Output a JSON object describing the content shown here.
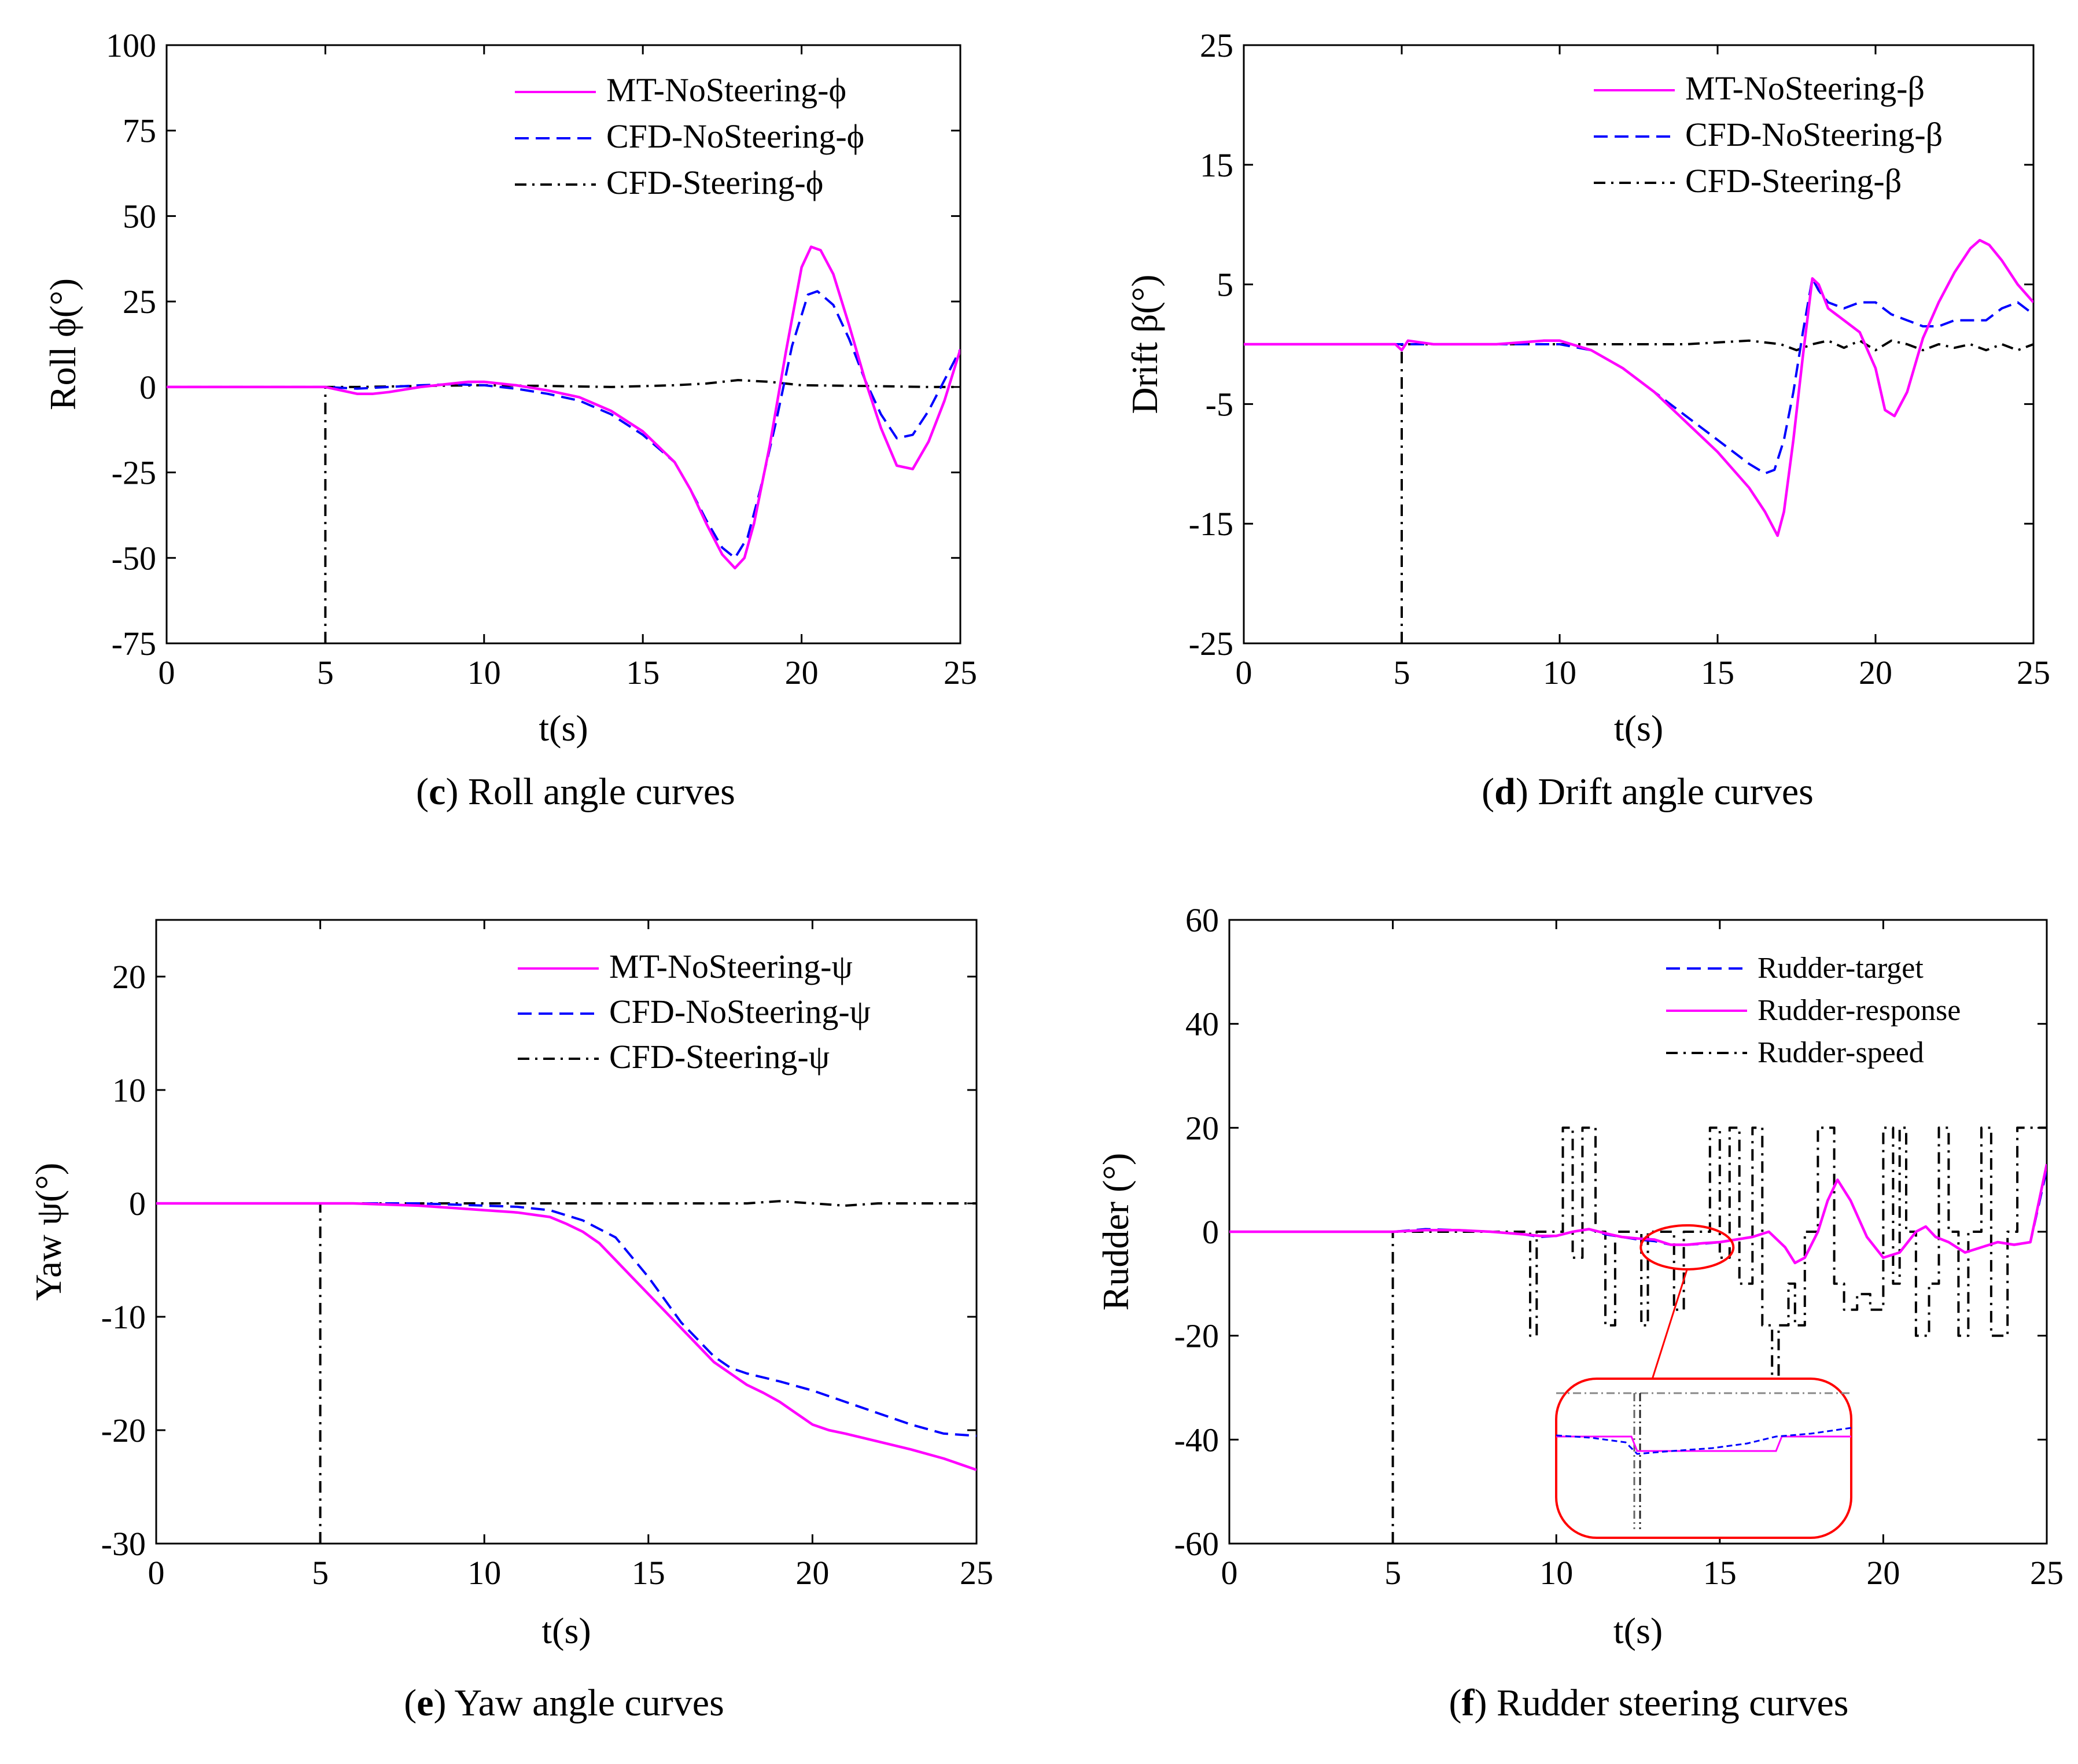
{
  "colors": {
    "mt": "#ff00ff",
    "cfd": "#0000ff",
    "steer": "#000000",
    "zoom": "#ff0000"
  },
  "chart_data": [
    {
      "id": "roll",
      "type": "line",
      "caption_letter": "c",
      "caption_text": "Roll angle curves",
      "xlabel": "t(s)",
      "ylabel": "Roll ϕ(°)",
      "xlim": [
        0,
        25
      ],
      "ylim": [
        -75,
        100
      ],
      "xticks": [
        0,
        5,
        10,
        15,
        20,
        25
      ],
      "yticks": [
        -75,
        -50,
        -25,
        0,
        25,
        50,
        75,
        100
      ],
      "legend_position": "top-right",
      "series": [
        {
          "name": "MT-NoSteering-ϕ",
          "style": "solid",
          "color": "#ff00ff",
          "x": [
            0,
            5,
            5.5,
            6,
            6.5,
            7,
            8,
            9,
            9.5,
            10,
            11,
            12,
            13,
            14,
            15,
            16,
            16.5,
            17,
            17.5,
            17.9,
            18.2,
            18.5,
            19,
            19.5,
            20,
            20.3,
            20.6,
            21,
            21.5,
            22,
            22.5,
            23,
            23.5,
            24,
            24.5,
            25
          ],
          "y": [
            0,
            0,
            -1,
            -2,
            -2,
            -1.5,
            0,
            1,
            1.5,
            1.5,
            0.5,
            -1,
            -3,
            -7,
            -13,
            -22,
            -30,
            -40,
            -49,
            -53,
            -50,
            -40,
            -17,
            10,
            35,
            41,
            40,
            33,
            18,
            2,
            -12,
            -23,
            -24,
            -16,
            -4,
            11
          ]
        },
        {
          "name": "CFD-NoSteering-ϕ",
          "style": "dash",
          "color": "#0000ff",
          "x": [
            0,
            5,
            6,
            7,
            8,
            9,
            10,
            11,
            12,
            13,
            14,
            15,
            16,
            16.5,
            17,
            17.5,
            17.9,
            18.3,
            18.7,
            19.2,
            19.7,
            20.2,
            20.5,
            21,
            21.5,
            22,
            22.5,
            23,
            23.5,
            24,
            24.5,
            25
          ],
          "y": [
            0,
            0,
            -0.5,
            0,
            0.5,
            0.8,
            0.5,
            -0.5,
            -2,
            -4,
            -8,
            -14,
            -22,
            -30,
            -39,
            -47,
            -50,
            -44,
            -30,
            -10,
            12,
            27,
            28,
            24,
            14,
            2,
            -8,
            -15,
            -14,
            -7,
            2,
            11
          ]
        },
        {
          "name": "CFD-Steering-ϕ",
          "style": "dashdot",
          "color": "#000000",
          "x": [
            5,
            5,
            6,
            8,
            10,
            12,
            14,
            16,
            17,
            18,
            19,
            20,
            22,
            24,
            25
          ],
          "y": [
            -75,
            0,
            0,
            0.3,
            0.5,
            0.3,
            0,
            0.5,
            1,
            2,
            1.5,
            0.5,
            0.3,
            0,
            0
          ]
        }
      ]
    },
    {
      "id": "drift",
      "type": "line",
      "caption_letter": "d",
      "caption_text": "Drift angle curves",
      "xlabel": "t(s)",
      "ylabel": "Drift β(°)",
      "xlim": [
        0,
        25
      ],
      "ylim": [
        -25,
        25
      ],
      "xticks": [
        0,
        5,
        10,
        15,
        20,
        25
      ],
      "yticks": [
        -25,
        -15,
        -5,
        5,
        15,
        25
      ],
      "legend_position": "top-right",
      "series": [
        {
          "name": "MT-NoSteering-β",
          "style": "solid",
          "color": "#ff00ff",
          "x": [
            0,
            4.8,
            5,
            5.2,
            6,
            8,
            9.5,
            10,
            11,
            12,
            13,
            14,
            15,
            16,
            16.5,
            16.9,
            17.1,
            17.4,
            17.7,
            18,
            18.2,
            18.5,
            19,
            19.5,
            20,
            20.3,
            20.6,
            21,
            21.5,
            22,
            22.5,
            23,
            23.3,
            23.6,
            24,
            24.5,
            25
          ],
          "y": [
            0,
            0,
            -0.5,
            0.3,
            0,
            0,
            0.3,
            0.3,
            -0.5,
            -2,
            -4,
            -6.5,
            -9,
            -12,
            -14,
            -16,
            -14,
            -8,
            -1,
            5.5,
            5,
            3,
            2,
            1,
            -2,
            -5.5,
            -6,
            -4,
            0.5,
            3.5,
            6,
            8,
            8.7,
            8.3,
            7,
            5,
            3.5
          ]
        },
        {
          "name": "CFD-NoSteering-β",
          "style": "dash",
          "color": "#0000ff",
          "x": [
            0,
            5,
            6,
            8,
            10,
            11,
            12,
            13,
            14,
            15,
            16,
            16.5,
            16.8,
            17.1,
            17.4,
            17.7,
            18,
            18.2,
            18.5,
            19,
            19.5,
            20,
            20.5,
            21,
            21.5,
            22,
            22.5,
            23,
            23.5,
            24,
            24.5,
            25
          ],
          "y": [
            0,
            0,
            0,
            0,
            0,
            -0.5,
            -2,
            -4,
            -6,
            -8,
            -10,
            -10.8,
            -10.5,
            -8,
            -4,
            1,
            5.5,
            4.5,
            3.5,
            3,
            3.5,
            3.5,
            2.5,
            2,
            1.5,
            1.5,
            2,
            2,
            2,
            3,
            3.5,
            2.5
          ]
        },
        {
          "name": "CFD-Steering-β",
          "style": "dashdot",
          "color": "#000000",
          "x": [
            5,
            5,
            6,
            8,
            10,
            12,
            14,
            16,
            17,
            17.5,
            18,
            18.5,
            19,
            19.5,
            20,
            20.5,
            21,
            21.5,
            22,
            22.5,
            23,
            23.5,
            24,
            24.5,
            25
          ],
          "y": [
            -25,
            0,
            0,
            0,
            0,
            0,
            0,
            0.3,
            0,
            -0.5,
            0,
            0.3,
            -0.3,
            0.3,
            -0.5,
            0.3,
            0,
            -0.5,
            0,
            -0.3,
            0,
            -0.5,
            0,
            -0.5,
            0
          ]
        }
      ]
    },
    {
      "id": "yaw",
      "type": "line",
      "caption_letter": "e",
      "caption_text": "Yaw angle curves",
      "xlabel": "t(s)",
      "ylabel": "Yaw ψ(°)",
      "xlim": [
        0,
        25
      ],
      "ylim": [
        -30,
        25
      ],
      "xticks": [
        0,
        5,
        10,
        15,
        20,
        25
      ],
      "yticks": [
        -30,
        -20,
        -10,
        0,
        10,
        20
      ],
      "legend_position": "top-right",
      "series": [
        {
          "name": "MT-NoSteering-ψ",
          "style": "solid",
          "color": "#ff00ff",
          "x": [
            0,
            5,
            6,
            7,
            8,
            9,
            10,
            11,
            12,
            12.5,
            13,
            13.5,
            14,
            14.5,
            15,
            15.5,
            16,
            16.5,
            17,
            17.5,
            18,
            18.5,
            19,
            19.5,
            20,
            20.5,
            21,
            22,
            23,
            24,
            25
          ],
          "y": [
            0,
            0,
            0,
            -0.1,
            -0.2,
            -0.4,
            -0.6,
            -0.8,
            -1.2,
            -1.8,
            -2.5,
            -3.5,
            -5,
            -6.5,
            -8,
            -9.5,
            -11,
            -12.5,
            -14,
            -15,
            -16,
            -16.7,
            -17.5,
            -18.5,
            -19.5,
            -20,
            -20.3,
            -21,
            -21.7,
            -22.5,
            -23.5
          ]
        },
        {
          "name": "CFD-NoSteering-ψ",
          "style": "dash",
          "color": "#0000ff",
          "x": [
            0,
            5,
            6,
            8,
            10,
            11,
            12,
            13,
            14,
            15,
            15.5,
            16,
            16.5,
            17,
            17.5,
            18,
            19,
            20,
            21,
            22,
            23,
            24,
            25
          ],
          "y": [
            0,
            0,
            0,
            0,
            -0.2,
            -0.3,
            -0.6,
            -1.5,
            -3,
            -6.5,
            -8.5,
            -10.5,
            -12,
            -13.5,
            -14.5,
            -15,
            -15.7,
            -16.5,
            -17.5,
            -18.5,
            -19.5,
            -20.3,
            -20.5
          ]
        },
        {
          "name": "CFD-Steering-ψ",
          "style": "dashdot",
          "color": "#000000",
          "x": [
            5,
            5,
            6,
            8,
            10,
            12,
            14,
            16,
            18,
            19,
            20,
            21,
            22,
            23,
            24,
            25
          ],
          "y": [
            -30,
            0,
            0,
            0,
            0,
            0,
            0,
            0,
            0,
            0.2,
            0,
            -0.2,
            0,
            0,
            0,
            0
          ]
        }
      ]
    },
    {
      "id": "rudder",
      "type": "line",
      "caption_letter": "f",
      "caption_text": "Rudder steering curves",
      "xlabel": "t(s)",
      "ylabel": "Rudder (°)",
      "xlim": [
        0,
        25
      ],
      "ylim": [
        -60,
        60
      ],
      "xticks": [
        0,
        5,
        10,
        15,
        20,
        25
      ],
      "yticks": [
        -60,
        -40,
        -20,
        0,
        20,
        40,
        60
      ],
      "legend_position": "top-right",
      "series": [
        {
          "name": "Rudder-target",
          "style": "dash",
          "color": "#0000ff",
          "x": [
            0,
            5,
            6,
            7,
            8,
            9,
            9.5,
            10,
            10.5,
            11,
            11.5,
            12,
            12.5,
            13,
            13.5,
            14,
            14.5,
            15,
            15.5,
            16,
            16.5,
            17,
            17.3,
            17.6,
            18,
            18.3,
            18.6,
            19,
            19.5,
            20,
            20.5,
            21,
            21.3,
            21.6,
            22,
            22.5,
            23,
            23.5,
            24,
            24.5,
            25
          ],
          "y": [
            0,
            0,
            0.5,
            0.3,
            0,
            -0.5,
            -1,
            -0.8,
            0,
            0.5,
            -0.5,
            -1,
            -1.5,
            -1.8,
            -2.5,
            -2.5,
            -2.3,
            -2,
            -1.5,
            -1,
            0,
            -3,
            -6,
            -5,
            0,
            6,
            10,
            6,
            -1,
            -5,
            -4,
            0,
            1,
            -1,
            -2,
            -4,
            -3,
            -2,
            -2.5,
            -2,
            12
          ]
        },
        {
          "name": "Rudder-response",
          "style": "solid",
          "color": "#ff00ff",
          "x": [
            0,
            5,
            6,
            7,
            8,
            9,
            9.5,
            10,
            10.5,
            11,
            11.5,
            12,
            12.5,
            13,
            13.5,
            14,
            14.5,
            15,
            15.5,
            16,
            16.5,
            17,
            17.3,
            17.6,
            18,
            18.3,
            18.6,
            19,
            19.5,
            20,
            20.5,
            21,
            21.3,
            21.6,
            22,
            22.5,
            23,
            23.5,
            24,
            24.5,
            25
          ],
          "y": [
            0,
            0,
            0.3,
            0.3,
            0,
            -0.5,
            -0.8,
            -0.8,
            0,
            0.5,
            -0.3,
            -1,
            -1.3,
            -1.5,
            -2.5,
            -2.5,
            -2.2,
            -2,
            -1.5,
            -1,
            0,
            -3,
            -6,
            -5,
            0,
            6,
            10,
            6,
            -1,
            -5,
            -4,
            0,
            1,
            -1,
            -2,
            -4,
            -3,
            -2,
            -2.5,
            -2,
            13
          ]
        },
        {
          "name": "Rudder-speed",
          "style": "dashdot",
          "color": "#000000",
          "x": [
            5,
            5,
            9.2,
            9.2,
            9.4,
            9.4,
            10.2,
            10.2,
            10.5,
            10.5,
            10.8,
            10.8,
            11.2,
            11.2,
            11.5,
            11.5,
            11.8,
            11.8,
            12.6,
            12.6,
            12.8,
            12.8,
            13.6,
            13.6,
            13.9,
            13.9,
            14.7,
            14.7,
            15.0,
            15.0,
            15.3,
            15.3,
            15.6,
            15.6,
            16.0,
            16.0,
            16.3,
            16.3,
            16.6,
            16.6,
            16.8,
            16.8,
            17.1,
            17.1,
            17.3,
            17.3,
            17.6,
            17.6,
            18.0,
            18.0,
            18.5,
            18.5,
            18.8,
            18.8,
            19.2,
            19.2,
            19.6,
            19.6,
            20.0,
            20.0,
            20.3,
            20.3,
            20.5,
            20.5,
            20.7,
            20.7,
            21.0,
            21.0,
            21.4,
            21.4,
            21.7,
            21.7,
            22.0,
            22.0,
            22.3,
            22.3,
            22.6,
            22.6,
            23.0,
            23.0,
            23.3,
            23.3,
            23.8,
            23.8,
            24.1,
            24.1,
            24.5,
            24.5,
            25
          ],
          "y": [
            -60,
            0,
            0,
            -20,
            -20,
            0,
            0,
            20,
            20,
            -5,
            -5,
            20,
            20,
            0,
            0,
            -18,
            -18,
            0,
            0,
            -18,
            -18,
            0,
            0,
            -15,
            -15,
            0,
            0,
            20,
            20,
            -5,
            -5,
            20,
            20,
            -10,
            -10,
            20,
            20,
            -18,
            -18,
            -30,
            -30,
            -18,
            -18,
            -10,
            -10,
            -18,
            -18,
            0,
            0,
            20,
            20,
            -10,
            -10,
            -15,
            -15,
            -12,
            -12,
            -15,
            -15,
            20,
            20,
            -10,
            -10,
            20,
            20,
            0,
            0,
            -20,
            -20,
            -10,
            -10,
            20,
            20,
            0,
            0,
            -20,
            -20,
            0,
            0,
            20,
            20,
            -20,
            -20,
            0,
            0,
            20,
            20,
            20,
            20
          ]
        }
      ]
    }
  ]
}
